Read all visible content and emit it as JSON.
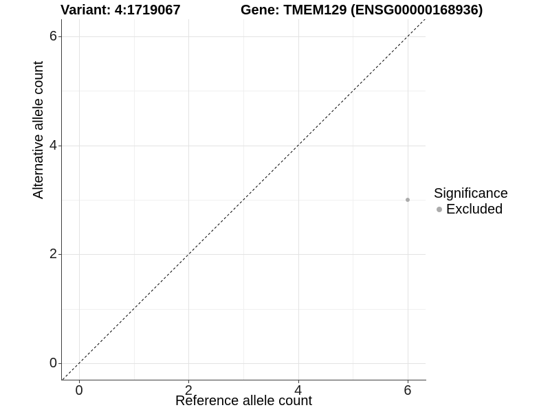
{
  "header": {
    "variant_title": "Variant: 4:1719067",
    "gene_title": "Gene: TMEM129 (ENSG00000168936)"
  },
  "axes": {
    "x": {
      "label": "Reference allele count"
    },
    "y": {
      "label": "Alternative allele count"
    }
  },
  "legend": {
    "title": "Significance",
    "items": [
      {
        "label": "Excluded",
        "color": "#ababab"
      }
    ]
  },
  "chart_data": {
    "type": "scatter",
    "title_left": "Variant: 4:1719067",
    "title_right": "Gene: TMEM129 (ENSG00000168936)",
    "xlabel": "Reference allele count",
    "ylabel": "Alternative allele count",
    "xlim": [
      -0.3,
      6.32
    ],
    "ylim": [
      -0.3,
      6.32
    ],
    "x_major_ticks": [
      0,
      2,
      4,
      6
    ],
    "y_major_ticks": [
      0,
      2,
      4,
      6
    ],
    "x_minor_gridlines": [
      1,
      3,
      5
    ],
    "y_minor_gridlines": [
      1,
      3,
      5
    ],
    "grid": true,
    "legend_position": "right",
    "series": [
      {
        "name": "Excluded",
        "color": "#ababab",
        "points": [
          {
            "x": 6,
            "y": 3
          }
        ]
      }
    ],
    "identity_line": {
      "note": "y = x reference line",
      "style": "dashed",
      "color": "#000000"
    }
  },
  "colors": {
    "background": "#ffffff",
    "grid_major": "#e3e3e3",
    "grid_minor": "#f0f0f0",
    "axis_line": "#3f3f3f",
    "point": "#ababab",
    "text": "#000000"
  }
}
